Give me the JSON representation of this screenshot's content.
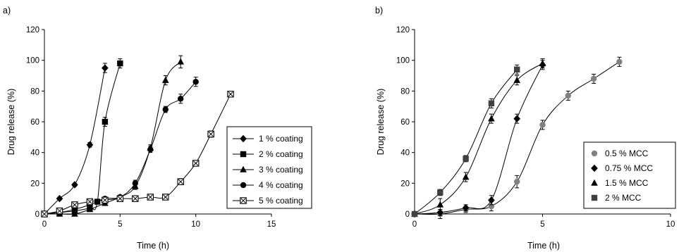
{
  "chart_data": [
    {
      "type": "line",
      "panel_label": "a)",
      "xlabel": "Time (h)",
      "ylabel": "Drug release (%)",
      "xlim": [
        0,
        15
      ],
      "ylim": [
        0,
        120
      ],
      "xticks": [
        0,
        5,
        10,
        15
      ],
      "yticks": [
        0,
        20,
        40,
        60,
        80,
        100,
        120
      ],
      "grid": false,
      "legend_position": "right",
      "series": [
        {
          "name": "1 % coating",
          "marker": "diamond",
          "x": [
            0,
            1,
            2,
            3,
            4
          ],
          "y": [
            0,
            10,
            19,
            45,
            95
          ],
          "err": [
            0,
            1,
            1,
            1.5,
            3
          ]
        },
        {
          "name": "2 % coating",
          "marker": "square",
          "x": [
            0,
            1,
            2,
            3,
            3.5,
            4,
            5
          ],
          "y": [
            0,
            1,
            2,
            4,
            8,
            60,
            98
          ],
          "err": [
            0,
            1,
            1,
            1,
            1,
            3,
            3
          ]
        },
        {
          "name": "3 % coating",
          "marker": "triangle",
          "x": [
            0,
            1,
            2,
            3,
            4,
            5,
            6,
            7,
            8,
            9
          ],
          "y": [
            0,
            0,
            0,
            3,
            7,
            11,
            18,
            43,
            87,
            99
          ],
          "err": [
            0,
            0,
            0,
            1,
            1,
            1,
            2,
            2,
            3,
            4
          ]
        },
        {
          "name": "4 % coating",
          "marker": "circle",
          "x": [
            0,
            1,
            2,
            3,
            4,
            5,
            6,
            7,
            8,
            9,
            10
          ],
          "y": [
            0,
            1,
            3,
            6,
            10,
            11,
            20,
            42,
            68,
            75,
            86
          ],
          "err": [
            0,
            1,
            1,
            1,
            1,
            1,
            2,
            2,
            2,
            3,
            3
          ]
        },
        {
          "name": "5 % coating",
          "marker": "squarex",
          "x": [
            0,
            1,
            2,
            3,
            4,
            5,
            6,
            7,
            8,
            9,
            10,
            11,
            12.3
          ],
          "y": [
            0,
            2,
            6,
            8,
            9,
            10,
            10,
            11,
            11,
            21,
            33,
            52,
            78
          ],
          "err": [
            0,
            1,
            1,
            1,
            1,
            1,
            1,
            1,
            1,
            2,
            1.5,
            2,
            1.5
          ]
        }
      ]
    },
    {
      "type": "line",
      "panel_label": "b)",
      "xlabel": "Time (h)",
      "ylabel": "Drug release (%)",
      "xlim": [
        0,
        10
      ],
      "ylim": [
        0,
        120
      ],
      "xticks": [
        0,
        5,
        10
      ],
      "yticks": [
        0,
        20,
        40,
        60,
        80,
        100,
        120
      ],
      "grid": false,
      "legend_position": "right",
      "series": [
        {
          "name": "0.5 % MCC",
          "marker": "circle",
          "color": "#808080",
          "x": [
            0,
            1,
            2,
            3,
            4,
            5,
            6,
            7,
            8
          ],
          "y": [
            0,
            0,
            3,
            5,
            21,
            58,
            77,
            88,
            99
          ],
          "err": [
            1,
            3,
            2,
            3,
            4,
            3,
            3,
            3,
            3
          ]
        },
        {
          "name": "0.75 % MCC",
          "marker": "diamond",
          "color": "#000000",
          "x": [
            0,
            1,
            2,
            3,
            4,
            5
          ],
          "y": [
            0,
            1,
            4,
            9,
            62,
            97
          ],
          "err": [
            1,
            2,
            2,
            3,
            3,
            3
          ]
        },
        {
          "name": "1.5 % MCC",
          "marker": "triangle",
          "color": "#000000",
          "x": [
            0,
            1,
            2,
            3,
            4,
            5
          ],
          "y": [
            0,
            6,
            24,
            62,
            87,
            98
          ],
          "err": [
            1,
            4,
            3,
            3,
            3,
            3
          ]
        },
        {
          "name": "2 % MCC",
          "marker": "square",
          "color": "#404040",
          "x": [
            0,
            1,
            2,
            3,
            4
          ],
          "y": [
            0,
            14,
            36,
            72,
            94
          ],
          "err": [
            1,
            2,
            2,
            3,
            3
          ]
        }
      ]
    }
  ]
}
